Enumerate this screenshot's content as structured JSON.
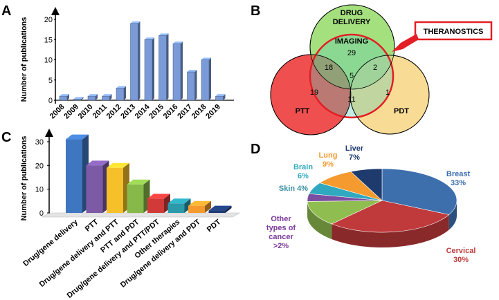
{
  "panels": [
    "A",
    "B",
    "C",
    "D"
  ],
  "chart_data": [
    {
      "panel": "A",
      "type": "bar",
      "ylabel": "Number of publications",
      "xlabel": "",
      "categories": [
        "2008",
        "2009",
        "2010",
        "2011",
        "2012",
        "2013",
        "2014",
        "2015",
        "2016",
        "2017",
        "2018",
        "2019"
      ],
      "values": [
        1,
        0.3,
        1,
        1,
        3,
        19,
        15,
        16,
        14,
        7,
        10,
        1
      ],
      "ylim": [
        0,
        20
      ],
      "yticks": [
        "0",
        "5",
        "10",
        "15",
        "20"
      ],
      "bar_color": "#7a9bd8"
    },
    {
      "panel": "C",
      "type": "bar",
      "ylabel": "Number of publications",
      "categories": [
        "Drug/gene delivery",
        "PTT",
        "Drug/gene delivery and PTT",
        "PTT and PDT",
        "Drug/gene delivery and PTT/PDT",
        "Other therapies",
        "Drug/gene delivery and PDT",
        "PDT"
      ],
      "values": [
        31,
        20,
        19,
        12,
        6,
        4,
        3,
        1
      ],
      "ylim": [
        0,
        30
      ],
      "yticks": [
        "0",
        "10",
        "20",
        "30"
      ],
      "colors": [
        "#3f76c0",
        "#7c5aa6",
        "#f5c02a",
        "#86b84a",
        "#d23a3a",
        "#2a9aab",
        "#f59a2e",
        "#1f3b75"
      ]
    },
    {
      "panel": "D",
      "type": "pie",
      "slices": [
        {
          "label": "Breast",
          "percent_label": "33%",
          "value": 33,
          "color": "#3d6fad",
          "text_color": "#3c6db0"
        },
        {
          "label": "Cervical",
          "percent_label": "30%",
          "value": 30,
          "color": "#c0393b",
          "text_color": "#c0393b"
        },
        {
          "label": "Other types of cancer",
          "percent_label": ">2%",
          "value": 13,
          "color": "#8fbd4f",
          "text_color": "#7a3a9a"
        },
        {
          "label": "Skin",
          "percent_label": "4%",
          "value": 4,
          "color": "#7a4ea0",
          "text_color": "#3a8fa0"
        },
        {
          "label": "Brain",
          "percent_label": "6%",
          "value": 6,
          "color": "#2fa8c0",
          "text_color": "#2fa8c0"
        },
        {
          "label": "Lung",
          "percent_label": "9%",
          "value": 9,
          "color": "#f59a2e",
          "text_color": "#f59a2e"
        },
        {
          "label": "Liver",
          "percent_label": "7%",
          "value": 7,
          "color": "#1f3b6e",
          "text_color": "#1f3b6e"
        }
      ],
      "text": {
        "breast": [
          "Breast",
          "33%"
        ],
        "cervical": [
          "Cervical",
          "30%"
        ],
        "other": [
          "Other",
          "types of",
          "cancer",
          ">2%"
        ],
        "skin": "Skin 4%",
        "brain": [
          "Brain",
          "6%"
        ],
        "lung": [
          "Lung",
          "9%"
        ],
        "liver": [
          "Liver",
          "7%"
        ]
      }
    },
    {
      "panel": "B",
      "type": "venn",
      "sets": [
        {
          "label": "DRUG DELIVERY",
          "lines": [
            "DRUG",
            "DELIVERY"
          ],
          "color": "#9ee07e"
        },
        {
          "label": "PTT",
          "color": "#ef4e4e"
        },
        {
          "label": "PDT",
          "color": "#f8dc94"
        },
        {
          "label": "THERANOSTICS",
          "color": "#e31e24"
        }
      ],
      "center_label": "IMAGING",
      "regions": {
        "imaging_only": 29,
        "imaging_ptt": 18,
        "imaging_pdt": 2,
        "all": 5,
        "ptt_only": 19,
        "ptt_pdt": 11,
        "pdt_only": 1
      }
    }
  ]
}
